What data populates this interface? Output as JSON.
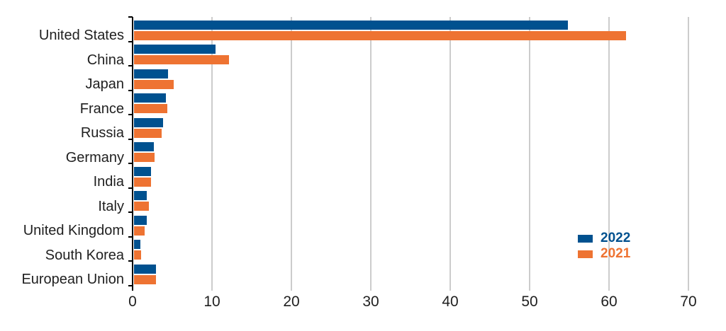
{
  "colors": {
    "series_2022": "#00518F",
    "series_2021": "#EE7332",
    "gridline": "#cccccc",
    "axis": "#000000",
    "label_text": "#1f1f1f"
  },
  "legend": {
    "items": [
      {
        "label": "2022",
        "color": "#00518F"
      },
      {
        "label": "2021",
        "color": "#EE7332"
      }
    ]
  },
  "x_axis": {
    "tick_labels": [
      "0",
      "10",
      "20",
      "30",
      "40",
      "50",
      "60",
      "70"
    ]
  },
  "chart_data": {
    "type": "bar",
    "orientation": "horizontal",
    "title": "",
    "xlabel": "",
    "ylabel": "",
    "xlim": [
      0,
      70
    ],
    "xticks": [
      0,
      10,
      20,
      30,
      40,
      50,
      60,
      70
    ],
    "grid": true,
    "legend_position": "right-lower",
    "categories": [
      "United States",
      "China",
      "Japan",
      "France",
      "Russia",
      "Germany",
      "India",
      "Italy",
      "United Kingdom",
      "South Korea",
      "European Union"
    ],
    "series": [
      {
        "name": "2022",
        "color": "#00518F",
        "values": [
          54.6,
          10.3,
          4.3,
          4.0,
          3.7,
          2.5,
          2.1,
          1.6,
          1.6,
          0.8,
          2.8
        ]
      },
      {
        "name": "2021",
        "color": "#EE7332",
        "values": [
          62.0,
          12.0,
          5.0,
          4.2,
          3.5,
          2.6,
          2.1,
          1.9,
          1.3,
          0.9,
          2.8
        ]
      }
    ]
  }
}
